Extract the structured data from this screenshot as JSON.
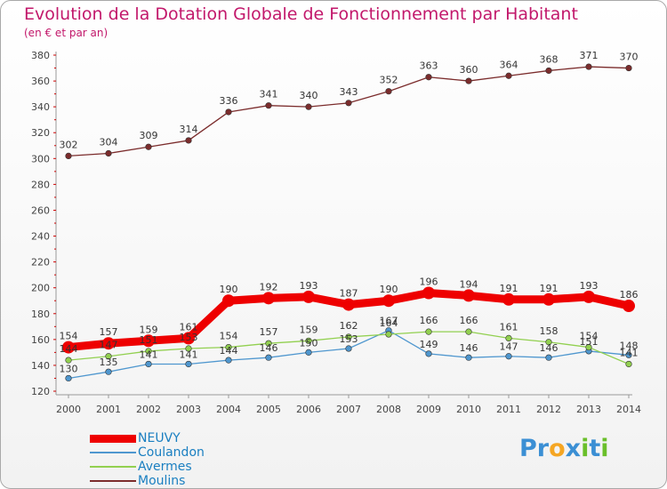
{
  "header": {
    "title": "Evolution de la Dotation Globale de Fonctionnement par Habitant",
    "subtitle": "(en € et par an)"
  },
  "chart_data": {
    "type": "line",
    "title": "Evolution de la Dotation Globale de Fonctionnement par Habitant",
    "subtitle": "(en € et par an)",
    "xlabel": "",
    "ylabel": "",
    "ylim": [
      120,
      380
    ],
    "y_ticks": [
      120,
      140,
      160,
      180,
      200,
      220,
      240,
      260,
      280,
      300,
      320,
      340,
      360,
      380
    ],
    "grid": false,
    "legend_position": "bottom-left",
    "x": [
      "2000",
      "2001",
      "2002",
      "2003",
      "2004",
      "2005",
      "2006",
      "2007",
      "2008",
      "2009",
      "2010",
      "2011",
      "2012",
      "2013",
      "2014"
    ],
    "series": [
      {
        "name": "NEUVY",
        "color": "#ee0000",
        "values": [
          154,
          157,
          159,
          161,
          190,
          192,
          193,
          187,
          190,
          196,
          194,
          191,
          191,
          193,
          186
        ]
      },
      {
        "name": "Coulandon",
        "color": "#4f97cf",
        "values": [
          130,
          135,
          141,
          141,
          144,
          146,
          150,
          153,
          167,
          149,
          146,
          147,
          146,
          151,
          148
        ]
      },
      {
        "name": "Avermes",
        "color": "#92d050",
        "values": [
          144,
          147,
          151,
          153,
          154,
          157,
          159,
          162,
          164,
          166,
          166,
          161,
          158,
          154,
          141
        ]
      },
      {
        "name": "Moulins",
        "color": "#7b2c2c",
        "values": [
          302,
          304,
          309,
          314,
          336,
          341,
          340,
          343,
          352,
          363,
          360,
          364,
          368,
          371,
          370
        ]
      }
    ]
  },
  "logo": {
    "parts": [
      "Pr",
      "o",
      "x",
      "i",
      "t",
      "i"
    ],
    "colors": [
      "#3b8fd4",
      "#f5a623",
      "#3b8fd4",
      "#6abf2a",
      "#3b8fd4",
      "#6abf2a"
    ]
  }
}
